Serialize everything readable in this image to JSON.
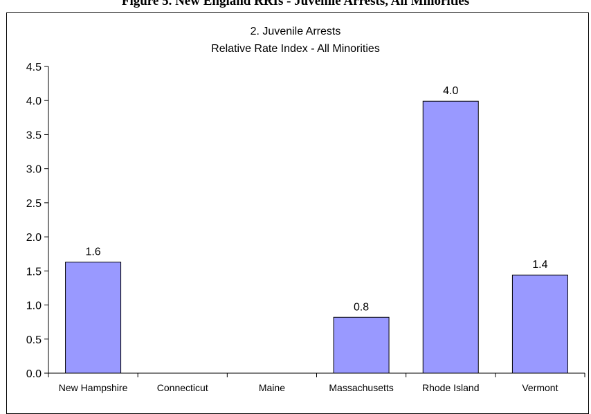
{
  "figure_caption": "Figure 5. New England RRIs - Juvenile Arrests, All Minorities",
  "colors": {
    "bar_fill": "#9999ff",
    "bar_stroke": "#000000",
    "axis": "#000000"
  },
  "chart_data": {
    "type": "bar",
    "title": "2. Juvenile Arrests",
    "subtitle": "Relative Rate Index - All Minorities",
    "categories": [
      "New Hampshire",
      "Connecticut",
      "Maine",
      "Massachusetts",
      "Rhode Island",
      "Vermont"
    ],
    "values": [
      1.63,
      null,
      null,
      0.82,
      3.99,
      1.44
    ],
    "data_labels": [
      "1.6",
      "",
      "",
      "0.8",
      "4.0",
      "1.4"
    ],
    "y_ticks": [
      "0.0",
      "0.5",
      "1.0",
      "1.5",
      "2.0",
      "2.5",
      "3.0",
      "3.5",
      "4.0",
      "4.5"
    ],
    "ylim": [
      0,
      4.5
    ],
    "xlabel": "",
    "ylabel": "",
    "grid": false,
    "legend": "none"
  }
}
